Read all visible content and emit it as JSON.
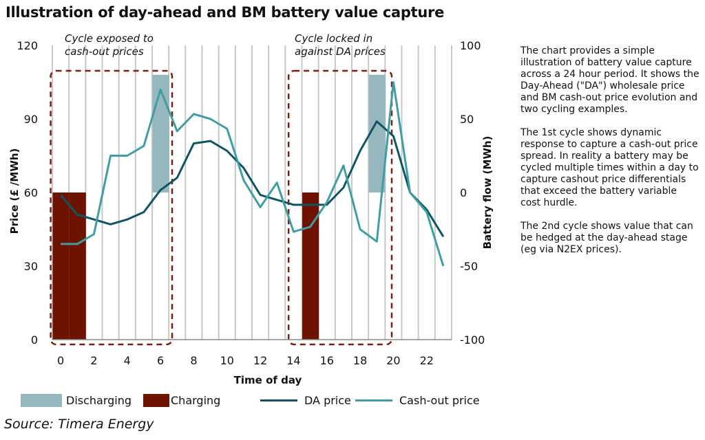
{
  "title": "Illustration of day-ahead and BM battery value capture",
  "source": "Source: Timera Energy",
  "side_text": [
    "The chart provides a simple illustration of battery value capture across a 24 hour period. It shows the Day-Ahead (\"DA\") wholesale price and BM cash-out price evolution and two cycling examples.",
    "The 1st cycle shows dynamic response to capture a cash-out price spread. In reality a battery may be cycled multiple times within a day to capture cashout price differentials that exceed the battery variable cost hurdle.",
    "The 2nd cycle shows value that can be hedged at the day-ahead stage (eg via N2EX prices)."
  ],
  "colors": {
    "discharging": "#95b7bd",
    "charging": "#6e1300",
    "da_price": "#0e5563",
    "cashout_price": "#3f9ea3",
    "grid": "#c8c8c8",
    "dashed_box": "#7a1f10"
  },
  "chart_data": {
    "type": "line",
    "title": "Illustration of day-ahead and BM battery value capture",
    "xlabel": "Time of day",
    "ylabel": "Price (£ /MWh)",
    "y2label": "Battery flow (MWh)",
    "xlim": [
      -0.5,
      23.5
    ],
    "ylim": [
      0,
      120
    ],
    "y2lim": [
      -100,
      100
    ],
    "xticks": [
      0,
      2,
      4,
      6,
      8,
      10,
      12,
      14,
      16,
      18,
      20,
      22
    ],
    "yticks": [
      0,
      30,
      60,
      90,
      120
    ],
    "y2ticks": [
      -100,
      -50,
      0,
      50,
      100
    ],
    "grid": "vertical",
    "legend_position": "bottom",
    "x": [
      0,
      1,
      2,
      3,
      4,
      5,
      6,
      7,
      8,
      9,
      10,
      11,
      12,
      13,
      14,
      15,
      16,
      17,
      18,
      19,
      20,
      21,
      22,
      23
    ],
    "series": [
      {
        "name": "DA price",
        "values": [
          59,
          51,
          49,
          47,
          49,
          52,
          61,
          66,
          80,
          81,
          77,
          70,
          59,
          57,
          55,
          55,
          55,
          62,
          77,
          89,
          83,
          60,
          53,
          42
        ]
      },
      {
        "name": "Cash-out price",
        "values": [
          39,
          39,
          43,
          75,
          75,
          79,
          102,
          85,
          92,
          90,
          86,
          65,
          54,
          64,
          44,
          46,
          56,
          71,
          45,
          40,
          105,
          60,
          52,
          30
        ]
      }
    ],
    "bars": [
      {
        "name": "Charging",
        "positions": [
          0,
          1,
          15
        ],
        "values": [
          -100,
          -100,
          -100
        ]
      },
      {
        "name": "Discharging",
        "positions": [
          6,
          19
        ],
        "values": [
          80,
          80
        ]
      }
    ],
    "annotations": [
      "Cycle exposed to cash-out prices",
      "Cycle locked in against DA prices"
    ]
  },
  "legend": [
    {
      "label": "Discharging",
      "kind": "box",
      "color_key": "discharging"
    },
    {
      "label": "Charging",
      "kind": "box",
      "color_key": "charging"
    },
    {
      "label": "DA price",
      "kind": "line",
      "color_key": "da_price"
    },
    {
      "label": "Cash-out price",
      "kind": "line",
      "color_key": "cashout_price"
    }
  ]
}
